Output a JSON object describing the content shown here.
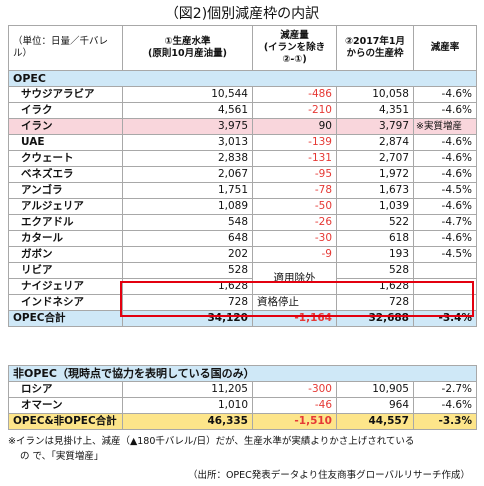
{
  "title": "（図2)個別減産枠の内訳",
  "header": {
    "unit": "（単位：日量／千バレル）",
    "col1": "①生産水準\n(原則10月産油量)",
    "col2": "減産量\n(イランを除き\n②-①)",
    "col3": "②2017年1月\nからの生産枠",
    "col4": "減産率"
  },
  "opec": {
    "label": "OPEC",
    "rows": [
      {
        "name": "サウジアラビア",
        "v1": "10,544",
        "v2": "-486",
        "v3": "10,058",
        "v4": "-4.6%"
      },
      {
        "name": "イラク",
        "v1": "4,561",
        "v2": "-210",
        "v3": "4,351",
        "v4": "-4.6%"
      },
      {
        "name": "イラン",
        "v1": "3,975",
        "v2": "90",
        "v3": "3,797",
        "v4": "※実質増産"
      },
      {
        "name": "UAE",
        "v1": "3,013",
        "v2": "-139",
        "v3": "2,874",
        "v4": "-4.6%"
      },
      {
        "name": "クウェート",
        "v1": "2,838",
        "v2": "-131",
        "v3": "2,707",
        "v4": "-4.6%"
      },
      {
        "name": "ベネズエラ",
        "v1": "2,067",
        "v2": "-95",
        "v3": "1,972",
        "v4": "-4.6%"
      },
      {
        "name": "アンゴラ",
        "v1": "1,751",
        "v2": "-78",
        "v3": "1,673",
        "v4": "-4.5%"
      },
      {
        "name": "アルジェリア",
        "v1": "1,089",
        "v2": "-50",
        "v3": "1,039",
        "v4": "-4.6%"
      },
      {
        "name": "エクアドル",
        "v1": "548",
        "v2": "-26",
        "v3": "522",
        "v4": "-4.7%"
      },
      {
        "name": "カタール",
        "v1": "648",
        "v2": "-30",
        "v3": "618",
        "v4": "-4.6%"
      },
      {
        "name": "ガボン",
        "v1": "202",
        "v2": "-9",
        "v3": "193",
        "v4": "-4.5%"
      }
    ],
    "exempt": {
      "libya": {
        "name": "リビア",
        "v1": "528",
        "v3": "528"
      },
      "nigeria": {
        "name": "ナイジェリア",
        "v1": "1,628",
        "v3": "1,628"
      },
      "label": "適用除外"
    },
    "indonesia": {
      "name": "インドネシア",
      "v1": "728",
      "v2": "資格停止",
      "v3": "728"
    },
    "total": {
      "name": "OPEC合計",
      "v1": "34,120",
      "v2": "-1,164",
      "v3": "32,688",
      "v4": "-3.4%"
    }
  },
  "nonopec": {
    "label": "非OPEC（現時点で協力を表明している国のみ）",
    "rows": [
      {
        "name": "ロシア",
        "v1": "11,205",
        "v2": "-300",
        "v3": "10,905",
        "v4": "-2.7%"
      },
      {
        "name": "オマーン",
        "v1": "1,010",
        "v2": "-46",
        "v3": "964",
        "v4": "-4.6%"
      }
    ],
    "total": {
      "name": "OPEC&非OPEC合計",
      "v1": "46,335",
      "v2": "-1,510",
      "v3": "44,557",
      "v4": "-3.3%"
    }
  },
  "footnote1": "※イランは見掛け上、減産（▲180千バレル/日）だが、生産水準が実績よりかさ上げされている",
  "footnote2": "の で、「実質増産」",
  "source": "（出所：OPEC発表データより住友商事グローバルリサーチ作成）",
  "colors": {
    "header_blue": "#cfe8f7",
    "iran_pink": "#f9d6dc",
    "total_yellow": "#fde58a",
    "negative": "#e53935",
    "highlight_border": "#e3000f"
  }
}
